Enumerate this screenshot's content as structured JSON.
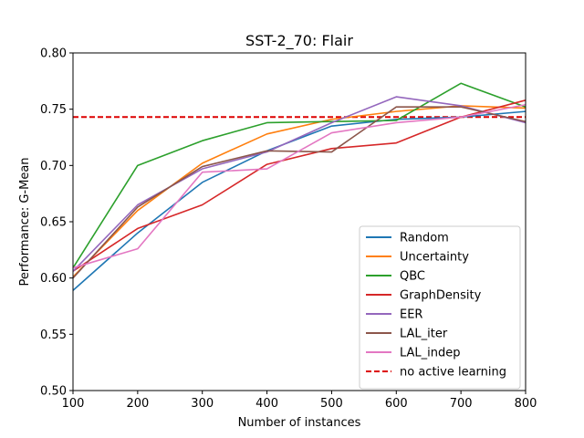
{
  "chart_data": {
    "type": "line",
    "title": "SST-2_70: Flair",
    "xlabel": "Number of instances",
    "ylabel": "Performance: G-Mean",
    "xlim": [
      100,
      800
    ],
    "ylim": [
      0.5,
      0.8
    ],
    "xticks": [
      100,
      200,
      300,
      400,
      500,
      600,
      700,
      800
    ],
    "yticks": [
      0.5,
      0.55,
      0.6,
      0.65,
      0.7,
      0.75,
      0.8
    ],
    "xtick_labels": [
      "100",
      "200",
      "300",
      "400",
      "500",
      "600",
      "700",
      "800"
    ],
    "ytick_labels": [
      "0.50",
      "0.55",
      "0.60",
      "0.65",
      "0.70",
      "0.75",
      "0.80"
    ],
    "x": [
      100,
      200,
      300,
      400,
      500,
      600,
      700,
      800
    ],
    "grid": false,
    "legend_position": "lower-right",
    "series": [
      {
        "name": "Random",
        "color": "#1f77b4",
        "values": [
          0.589,
          0.64,
          0.685,
          0.713,
          0.735,
          0.741,
          0.743,
          0.748
        ]
      },
      {
        "name": "Uncertainty",
        "color": "#ff7f0e",
        "values": [
          0.601,
          0.66,
          0.702,
          0.728,
          0.741,
          0.748,
          0.753,
          0.751
        ]
      },
      {
        "name": "QBC",
        "color": "#2ca02c",
        "values": [
          0.609,
          0.7,
          0.722,
          0.738,
          0.739,
          0.74,
          0.773,
          0.752
        ]
      },
      {
        "name": "GraphDensity",
        "color": "#d62728",
        "values": [
          0.606,
          0.644,
          0.665,
          0.701,
          0.715,
          0.72,
          0.743,
          0.758
        ]
      },
      {
        "name": "EER",
        "color": "#9467bd",
        "values": [
          0.606,
          0.665,
          0.697,
          0.712,
          0.738,
          0.761,
          0.753,
          0.738
        ]
      },
      {
        "name": "LAL_iter",
        "color": "#8c564b",
        "values": [
          0.6,
          0.663,
          0.699,
          0.713,
          0.712,
          0.752,
          0.752,
          0.739
        ]
      },
      {
        "name": "LAL_indep",
        "color": "#e377c2",
        "values": [
          0.609,
          0.626,
          0.694,
          0.697,
          0.729,
          0.738,
          0.743,
          0.754
        ]
      }
    ],
    "baseline": {
      "name": "no active learning",
      "color": "#dd0000",
      "value": 0.743,
      "style": "dashed"
    }
  }
}
